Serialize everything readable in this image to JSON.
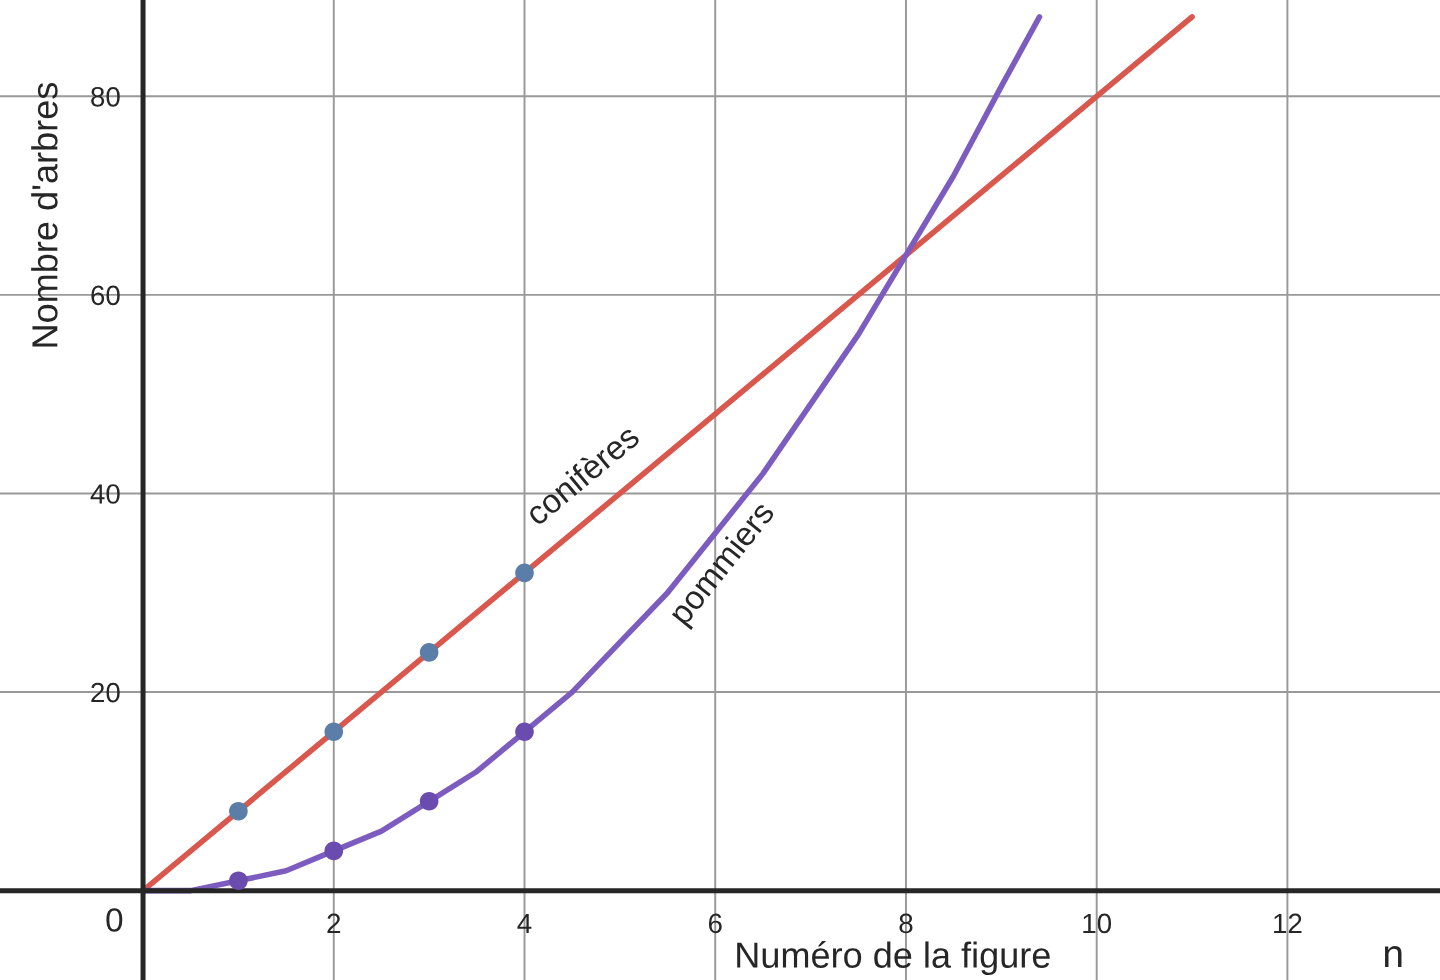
{
  "chart_data": {
    "type": "line",
    "xlabel": "Numéro de la figure",
    "ylabel": "Nombre d'arbres",
    "annotations": [
      "n",
      {
        "text": "0",
        "x": 0,
        "y": 0
      }
    ],
    "xlim": [
      -1.5,
      13.6
    ],
    "ylim": [
      -9,
      89.7
    ],
    "xticks": [
      {
        "value": 0,
        "label": null
      },
      2,
      4,
      6,
      8,
      10,
      12
    ],
    "yticks": [
      20,
      40,
      60,
      80
    ],
    "grid": true,
    "legend": false,
    "series": [
      {
        "name": "conifères",
        "color": "#d9574c",
        "x": [
          0,
          11
        ],
        "values": [
          0,
          88
        ]
      },
      {
        "name": "pommiers",
        "color": "#7d5cc0",
        "x": [
          0,
          0.5,
          1,
          1.5,
          2,
          2.5,
          3,
          3.5,
          4,
          4.5,
          5,
          5.5,
          6,
          6.5,
          7,
          7.5,
          8,
          8.5,
          9,
          9.4
        ],
        "values": [
          0,
          0,
          1,
          2,
          4,
          6,
          9,
          12,
          16,
          20,
          25,
          30,
          36,
          42,
          49,
          56,
          64,
          72,
          81,
          88
        ]
      },
      {
        "type": "scatter",
        "marker": "circle",
        "color": "#5a7ea8",
        "x": [
          1,
          2,
          3,
          4
        ],
        "values": [
          8,
          16,
          24,
          32
        ]
      },
      {
        "type": "scatter",
        "marker": "circle",
        "color": "#6a4cae",
        "x": [
          1,
          2,
          3,
          4
        ],
        "values": [
          1,
          4,
          9,
          16
        ]
      }
    ]
  }
}
